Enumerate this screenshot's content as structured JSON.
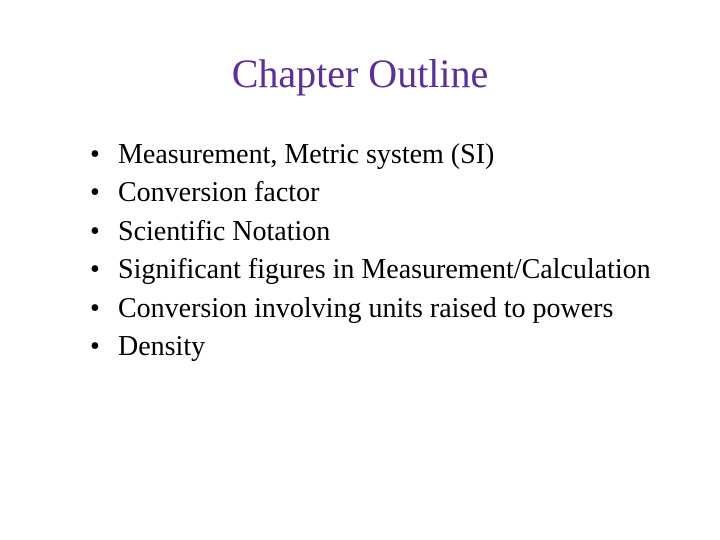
{
  "slide": {
    "title": "Chapter Outline",
    "title_color": "#5c2f9c",
    "title_fontsize": 40,
    "body_fontsize": 28,
    "body_color": "#000000",
    "background_color": "#ffffff",
    "font_family": "Times New Roman",
    "bullets": [
      "Measurement, Metric system (SI)",
      "Conversion factor",
      "Scientific Notation",
      "Significant figures in Measurement/Calculation",
      "Conversion involving units raised to powers",
      "Density"
    ]
  }
}
